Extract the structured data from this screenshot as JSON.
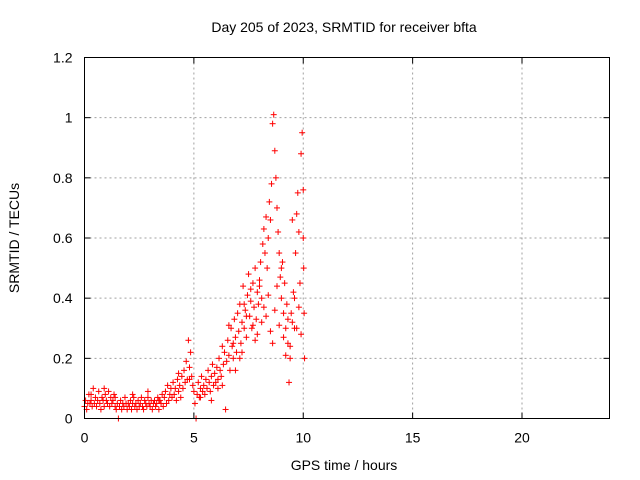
{
  "chart_data": {
    "type": "scatter",
    "title": "Day 205 of 2023, SRMTID for receiver bfta",
    "xlabel": "GPS time / hours",
    "ylabel": "SRMTID / TECUs",
    "xlim": [
      0,
      24
    ],
    "ylim": [
      0,
      1.2
    ],
    "xticks": [
      0,
      5,
      10,
      15,
      20
    ],
    "yticks": [
      0,
      0.2,
      0.4,
      0.6,
      0.8,
      1.0,
      1.2
    ],
    "xtick_labels": [
      "0",
      "5",
      "10",
      "15",
      "20"
    ],
    "ytick_labels": [
      "0",
      "0.2",
      "0.4",
      "0.6",
      "0.8",
      "1",
      "1.2"
    ],
    "grid": true,
    "marker": "+",
    "color": "#ff0000",
    "series": [
      {
        "name": "SRMTID",
        "points": [
          [
            0.0,
            0.04
          ],
          [
            0.05,
            0.06
          ],
          [
            0.1,
            0.03
          ],
          [
            0.15,
            0.05
          ],
          [
            0.2,
            0.08
          ],
          [
            0.25,
            0.05
          ],
          [
            0.3,
            0.06
          ],
          [
            0.35,
            0.04
          ],
          [
            0.4,
            0.1
          ],
          [
            0.45,
            0.05
          ],
          [
            0.5,
            0.07
          ],
          [
            0.55,
            0.04
          ],
          [
            0.6,
            0.06
          ],
          [
            0.65,
            0.09
          ],
          [
            0.7,
            0.05
          ],
          [
            0.75,
            0.03
          ],
          [
            0.8,
            0.07
          ],
          [
            0.85,
            0.06
          ],
          [
            0.9,
            0.04
          ],
          [
            0.95,
            0.08
          ],
          [
            1.0,
            0.06
          ],
          [
            1.05,
            0.05
          ],
          [
            1.1,
            0.09
          ],
          [
            1.15,
            0.04
          ],
          [
            1.2,
            0.07
          ],
          [
            1.25,
            0.05
          ],
          [
            1.3,
            0.06
          ],
          [
            1.35,
            0.08
          ],
          [
            1.4,
            0.04
          ],
          [
            1.45,
            0.03
          ],
          [
            1.5,
            0.05
          ],
          [
            1.55,
            0.0
          ],
          [
            1.6,
            0.04
          ],
          [
            1.65,
            0.06
          ],
          [
            1.7,
            0.03
          ],
          [
            1.75,
            0.05
          ],
          [
            1.8,
            0.04
          ],
          [
            1.85,
            0.07
          ],
          [
            1.9,
            0.05
          ],
          [
            1.95,
            0.03
          ],
          [
            2.0,
            0.05
          ],
          [
            2.05,
            0.04
          ],
          [
            2.1,
            0.06
          ],
          [
            2.15,
            0.03
          ],
          [
            2.2,
            0.05
          ],
          [
            2.25,
            0.07
          ],
          [
            2.3,
            0.04
          ],
          [
            2.35,
            0.05
          ],
          [
            2.4,
            0.03
          ],
          [
            2.45,
            0.06
          ],
          [
            2.5,
            0.04
          ],
          [
            2.55,
            0.05
          ],
          [
            2.6,
            0.07
          ],
          [
            2.65,
            0.04
          ],
          [
            2.7,
            0.03
          ],
          [
            2.75,
            0.06
          ],
          [
            2.8,
            0.05
          ],
          [
            2.85,
            0.04
          ],
          [
            2.9,
            0.07
          ],
          [
            2.95,
            0.05
          ],
          [
            3.0,
            0.04
          ],
          [
            3.05,
            0.06
          ],
          [
            3.1,
            0.03
          ],
          [
            3.15,
            0.05
          ],
          [
            3.2,
            0.06
          ],
          [
            3.25,
            0.04
          ],
          [
            3.3,
            0.05
          ],
          [
            3.35,
            0.07
          ],
          [
            3.4,
            0.03
          ],
          [
            3.45,
            0.06
          ],
          [
            3.5,
            0.05
          ],
          [
            3.55,
            0.08
          ],
          [
            3.6,
            0.04
          ],
          [
            3.65,
            0.07
          ],
          [
            3.7,
            0.09
          ],
          [
            3.75,
            0.05
          ],
          [
            3.8,
            0.11
          ],
          [
            3.85,
            0.06
          ],
          [
            3.9,
            0.08
          ],
          [
            3.95,
            0.1
          ],
          [
            4.0,
            0.07
          ],
          [
            4.05,
            0.12
          ],
          [
            4.1,
            0.08
          ],
          [
            4.15,
            0.1
          ],
          [
            4.2,
            0.06
          ],
          [
            4.25,
            0.13
          ],
          [
            4.3,
            0.09
          ],
          [
            4.35,
            0.11
          ],
          [
            4.4,
            0.07
          ],
          [
            4.45,
            0.14
          ],
          [
            4.5,
            0.1
          ],
          [
            4.55,
            0.16
          ],
          [
            4.6,
            0.12
          ],
          [
            4.65,
            0.19
          ],
          [
            4.7,
            0.13
          ],
          [
            4.75,
            0.26
          ],
          [
            4.8,
            0.17
          ],
          [
            4.85,
            0.22
          ],
          [
            4.9,
            0.14
          ],
          [
            4.95,
            0.11
          ],
          [
            5.0,
            0.09
          ],
          [
            5.05,
            0.05
          ],
          [
            5.1,
            0.0
          ],
          [
            5.15,
            0.08
          ],
          [
            5.2,
            0.12
          ],
          [
            5.25,
            0.07
          ],
          [
            5.3,
            0.1
          ],
          [
            5.35,
            0.14
          ],
          [
            5.4,
            0.09
          ],
          [
            5.45,
            0.11
          ],
          [
            5.5,
            0.08
          ],
          [
            5.55,
            0.13
          ],
          [
            5.6,
            0.1
          ],
          [
            5.65,
            0.16
          ],
          [
            5.7,
            0.12
          ],
          [
            5.75,
            0.09
          ],
          [
            5.8,
            0.14
          ],
          [
            5.85,
            0.18
          ],
          [
            5.9,
            0.11
          ],
          [
            5.95,
            0.15
          ],
          [
            6.0,
            0.12
          ],
          [
            6.05,
            0.17
          ],
          [
            6.1,
            0.13
          ],
          [
            6.15,
            0.2
          ],
          [
            6.2,
            0.16
          ],
          [
            6.25,
            0.14
          ],
          [
            6.3,
            0.24
          ],
          [
            6.35,
            0.18
          ],
          [
            6.4,
            0.22
          ],
          [
            6.45,
            0.03
          ],
          [
            6.5,
            0.19
          ],
          [
            6.55,
            0.26
          ],
          [
            6.6,
            0.21
          ],
          [
            6.65,
            0.16
          ],
          [
            6.7,
            0.3
          ],
          [
            6.75,
            0.24
          ],
          [
            6.8,
            0.2
          ],
          [
            6.85,
            0.33
          ],
          [
            6.9,
            0.27
          ],
          [
            6.95,
            0.22
          ],
          [
            7.0,
            0.35
          ],
          [
            7.05,
            0.29
          ],
          [
            7.1,
            0.38
          ],
          [
            7.15,
            0.25
          ],
          [
            7.2,
            0.32
          ],
          [
            7.25,
            0.44
          ],
          [
            7.3,
            0.3
          ],
          [
            7.35,
            0.36
          ],
          [
            7.4,
            0.27
          ],
          [
            7.45,
            0.41
          ],
          [
            7.5,
            0.48
          ],
          [
            7.55,
            0.34
          ],
          [
            7.6,
            0.39
          ],
          [
            7.65,
            0.3
          ],
          [
            7.7,
            0.45
          ],
          [
            7.75,
            0.37
          ],
          [
            7.8,
            0.5
          ],
          [
            7.85,
            0.33
          ],
          [
            7.9,
            0.42
          ],
          [
            7.95,
            0.38
          ],
          [
            8.0,
            0.46
          ],
          [
            8.05,
            0.52
          ],
          [
            8.1,
            0.4
          ],
          [
            8.15,
            0.58
          ],
          [
            8.2,
            0.63
          ],
          [
            8.25,
            0.55
          ],
          [
            8.3,
            0.67
          ],
          [
            8.35,
            0.5
          ],
          [
            8.4,
            0.6
          ],
          [
            8.45,
            0.72
          ],
          [
            8.5,
            0.66
          ],
          [
            8.55,
            0.78
          ],
          [
            8.6,
            0.98
          ],
          [
            8.65,
            1.01
          ],
          [
            8.7,
            0.89
          ],
          [
            8.75,
            0.8
          ],
          [
            8.8,
            0.7
          ],
          [
            8.85,
            0.62
          ],
          [
            8.9,
            0.55
          ],
          [
            8.95,
            0.47
          ],
          [
            9.0,
            0.4
          ],
          [
            9.05,
            0.52
          ],
          [
            9.1,
            0.35
          ],
          [
            9.15,
            0.45
          ],
          [
            9.2,
            0.3
          ],
          [
            9.25,
            0.38
          ],
          [
            9.3,
            0.25
          ],
          [
            9.35,
            0.12
          ],
          [
            9.4,
            0.2
          ],
          [
            9.45,
            0.35
          ],
          [
            9.5,
            0.66
          ],
          [
            9.55,
            0.42
          ],
          [
            9.6,
            0.3
          ],
          [
            9.65,
            0.55
          ],
          [
            9.7,
            0.68
          ],
          [
            9.75,
            0.75
          ],
          [
            9.8,
            0.62
          ],
          [
            9.85,
            0.45
          ],
          [
            9.9,
            0.88
          ],
          [
            9.95,
            0.95
          ],
          [
            10.0,
            0.76
          ],
          [
            10.02,
            0.5
          ],
          [
            10.04,
            0.35
          ],
          [
            10.06,
            0.2
          ],
          [
            0.3,
            0.08
          ],
          [
            0.9,
            0.1
          ],
          [
            1.4,
            0.07
          ],
          [
            2.2,
            0.08
          ],
          [
            2.9,
            0.09
          ],
          [
            3.4,
            0.06
          ],
          [
            4.3,
            0.15
          ],
          [
            4.8,
            0.13
          ],
          [
            5.3,
            0.07
          ],
          [
            5.8,
            0.06
          ],
          [
            6.1,
            0.1
          ],
          [
            6.6,
            0.31
          ],
          [
            6.9,
            0.16
          ],
          [
            7.2,
            0.22
          ],
          [
            7.6,
            0.43
          ],
          [
            7.9,
            0.28
          ],
          [
            8.2,
            0.37
          ],
          [
            8.5,
            0.29
          ],
          [
            8.8,
            0.44
          ],
          [
            9.1,
            0.27
          ],
          [
            9.4,
            0.24
          ],
          [
            9.7,
            0.3
          ],
          [
            7.1,
            0.2
          ],
          [
            7.4,
            0.34
          ],
          [
            7.8,
            0.26
          ],
          [
            8.1,
            0.32
          ],
          [
            8.4,
            0.41
          ],
          [
            8.7,
            0.36
          ],
          [
            9.0,
            0.5
          ],
          [
            9.3,
            0.33
          ],
          [
            9.6,
            0.4
          ],
          [
            9.9,
            0.28
          ],
          [
            6.3,
            0.11
          ],
          [
            6.8,
            0.25
          ],
          [
            7.3,
            0.38
          ],
          [
            7.7,
            0.31
          ],
          [
            8.0,
            0.44
          ],
          [
            8.3,
            0.34
          ],
          [
            8.6,
            0.25
          ],
          [
            8.9,
            0.31
          ],
          [
            9.2,
            0.21
          ],
          [
            9.5,
            0.32
          ],
          [
            9.8,
            0.37
          ],
          [
            10.0,
            0.6
          ]
        ]
      }
    ]
  }
}
